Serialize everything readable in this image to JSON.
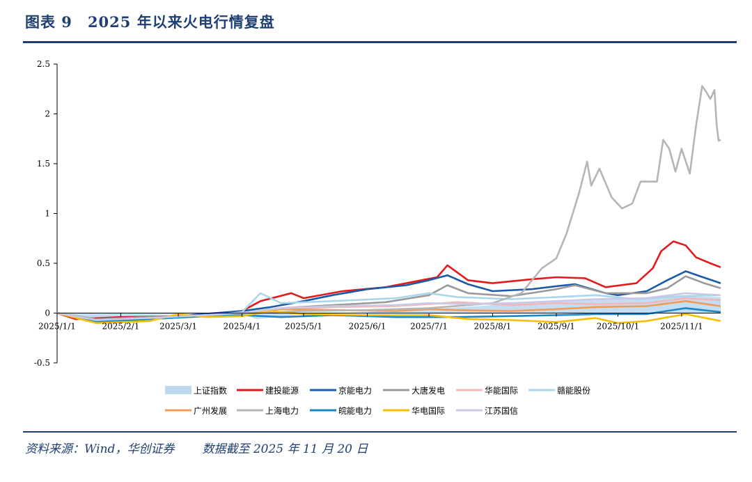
{
  "header": {
    "figure_no": "图表 9",
    "title": "2025 年以来火电行情复盘"
  },
  "footer": {
    "source": "资料来源：Wind，华创证券",
    "cutoff": "数据截至 2025 年 11 月 20 日"
  },
  "chart_data": {
    "type": "line",
    "ylim": [
      -0.5,
      2.5
    ],
    "yticks": [
      "2.5",
      "2",
      "1.5",
      "1",
      "0.5",
      "0",
      "-0.5"
    ],
    "ytick_values": [
      2.5,
      2,
      1.5,
      1,
      0.5,
      0,
      -0.5
    ],
    "x_range": [
      "2025-01-01",
      "2025-11-20"
    ],
    "xticks": [
      "2025/1/1",
      "2025/2/1",
      "2025/3/1",
      "2025/4/1",
      "2025/5/1",
      "2025/6/1",
      "2025/7/1",
      "2025/8/1",
      "2025/9/1",
      "2025/10/1",
      "2025/11/1"
    ],
    "xtick_dates": [
      "2025-01-01",
      "2025-02-01",
      "2025-03-01",
      "2025-04-01",
      "2025-05-01",
      "2025-06-01",
      "2025-07-01",
      "2025-08-01",
      "2025-09-01",
      "2025-10-01",
      "2025-11-01"
    ],
    "legend_position": "bottom",
    "series": [
      {
        "name": "上证指数",
        "color": "#bcd9f2",
        "style": "area",
        "points": [
          [
            "2025-01-01",
            0
          ],
          [
            "2025-01-15",
            -0.05
          ],
          [
            "2025-02-01",
            -0.03
          ],
          [
            "2025-03-01",
            -0.01
          ],
          [
            "2025-04-01",
            0.0
          ],
          [
            "2025-04-08",
            -0.06
          ],
          [
            "2025-05-01",
            -0.01
          ],
          [
            "2025-06-01",
            0.01
          ],
          [
            "2025-07-01",
            0.04
          ],
          [
            "2025-08-01",
            0.08
          ],
          [
            "2025-09-01",
            0.12
          ],
          [
            "2025-10-01",
            0.15
          ],
          [
            "2025-11-01",
            0.17
          ],
          [
            "2025-11-20",
            0.16
          ]
        ]
      },
      {
        "name": "建投能源",
        "color": "#e31a1c",
        "points": [
          [
            "2025-01-01",
            0
          ],
          [
            "2025-01-10",
            -0.06
          ],
          [
            "2025-02-01",
            -0.04
          ],
          [
            "2025-03-01",
            -0.03
          ],
          [
            "2025-04-01",
            0.02
          ],
          [
            "2025-04-10",
            0.12
          ],
          [
            "2025-04-25",
            0.2
          ],
          [
            "2025-05-01",
            0.15
          ],
          [
            "2025-05-20",
            0.22
          ],
          [
            "2025-06-10",
            0.26
          ],
          [
            "2025-06-25",
            0.32
          ],
          [
            "2025-07-05",
            0.36
          ],
          [
            "2025-07-10",
            0.48
          ],
          [
            "2025-07-20",
            0.33
          ],
          [
            "2025-08-01",
            0.3
          ],
          [
            "2025-08-20",
            0.34
          ],
          [
            "2025-09-01",
            0.36
          ],
          [
            "2025-09-15",
            0.35
          ],
          [
            "2025-09-25",
            0.26
          ],
          [
            "2025-10-10",
            0.3
          ],
          [
            "2025-10-18",
            0.45
          ],
          [
            "2025-10-22",
            0.62
          ],
          [
            "2025-10-28",
            0.72
          ],
          [
            "2025-11-03",
            0.68
          ],
          [
            "2025-11-08",
            0.56
          ],
          [
            "2025-11-15",
            0.5
          ],
          [
            "2025-11-20",
            0.46
          ]
        ]
      },
      {
        "name": "京能电力",
        "color": "#1a5aa8",
        "points": [
          [
            "2025-01-01",
            0
          ],
          [
            "2025-01-15",
            -0.07
          ],
          [
            "2025-02-01",
            -0.05
          ],
          [
            "2025-03-01",
            -0.03
          ],
          [
            "2025-04-01",
            0.02
          ],
          [
            "2025-04-15",
            0.06
          ],
          [
            "2025-05-01",
            0.12
          ],
          [
            "2025-05-15",
            0.18
          ],
          [
            "2025-06-01",
            0.24
          ],
          [
            "2025-06-20",
            0.28
          ],
          [
            "2025-07-01",
            0.33
          ],
          [
            "2025-07-10",
            0.38
          ],
          [
            "2025-07-20",
            0.29
          ],
          [
            "2025-08-01",
            0.22
          ],
          [
            "2025-08-20",
            0.24
          ],
          [
            "2025-09-01",
            0.27
          ],
          [
            "2025-09-10",
            0.29
          ],
          [
            "2025-09-25",
            0.2
          ],
          [
            "2025-10-01",
            0.18
          ],
          [
            "2025-10-15",
            0.22
          ],
          [
            "2025-10-25",
            0.33
          ],
          [
            "2025-11-03",
            0.42
          ],
          [
            "2025-11-10",
            0.37
          ],
          [
            "2025-11-20",
            0.3
          ]
        ]
      },
      {
        "name": "大唐发电",
        "color": "#9a9a9a",
        "points": [
          [
            "2025-01-01",
            0
          ],
          [
            "2025-01-20",
            -0.06
          ],
          [
            "2025-02-15",
            -0.04
          ],
          [
            "2025-03-15",
            -0.02
          ],
          [
            "2025-04-01",
            0.0
          ],
          [
            "2025-04-20",
            0.05
          ],
          [
            "2025-05-15",
            0.08
          ],
          [
            "2025-06-10",
            0.11
          ],
          [
            "2025-07-01",
            0.18
          ],
          [
            "2025-07-10",
            0.28
          ],
          [
            "2025-07-20",
            0.2
          ],
          [
            "2025-08-10",
            0.17
          ],
          [
            "2025-09-01",
            0.24
          ],
          [
            "2025-09-10",
            0.28
          ],
          [
            "2025-09-25",
            0.2
          ],
          [
            "2025-10-15",
            0.2
          ],
          [
            "2025-10-25",
            0.25
          ],
          [
            "2025-11-03",
            0.37
          ],
          [
            "2025-11-12",
            0.3
          ],
          [
            "2025-11-20",
            0.25
          ]
        ]
      },
      {
        "name": "华能国际",
        "color": "#f4b6b6",
        "points": [
          [
            "2025-01-01",
            0
          ],
          [
            "2025-01-20",
            -0.07
          ],
          [
            "2025-02-15",
            -0.05
          ],
          [
            "2025-03-15",
            -0.02
          ],
          [
            "2025-04-01",
            0.0
          ],
          [
            "2025-04-20",
            0.04
          ],
          [
            "2025-05-15",
            0.06
          ],
          [
            "2025-06-15",
            0.07
          ],
          [
            "2025-07-01",
            0.09
          ],
          [
            "2025-07-15",
            0.11
          ],
          [
            "2025-08-10",
            0.08
          ],
          [
            "2025-09-01",
            0.1
          ],
          [
            "2025-09-20",
            0.09
          ],
          [
            "2025-10-15",
            0.1
          ],
          [
            "2025-11-03",
            0.15
          ],
          [
            "2025-11-20",
            0.13
          ]
        ]
      },
      {
        "name": "赣能股份",
        "color": "#a9d6ea",
        "points": [
          [
            "2025-01-01",
            0
          ],
          [
            "2025-01-20",
            -0.07
          ],
          [
            "2025-02-15",
            -0.06
          ],
          [
            "2025-03-15",
            -0.03
          ],
          [
            "2025-04-01",
            0.01
          ],
          [
            "2025-04-10",
            0.2
          ],
          [
            "2025-04-20",
            0.1
          ],
          [
            "2025-05-15",
            0.12
          ],
          [
            "2025-06-15",
            0.15
          ],
          [
            "2025-07-01",
            0.2
          ],
          [
            "2025-07-15",
            0.16
          ],
          [
            "2025-08-10",
            0.14
          ],
          [
            "2025-09-01",
            0.16
          ],
          [
            "2025-09-20",
            0.18
          ],
          [
            "2025-10-10",
            0.14
          ],
          [
            "2025-11-01",
            0.17
          ],
          [
            "2025-11-20",
            0.18
          ]
        ]
      },
      {
        "name": "广州发展",
        "color": "#f39a55",
        "points": [
          [
            "2025-01-01",
            0
          ],
          [
            "2025-01-20",
            -0.08
          ],
          [
            "2025-02-15",
            -0.05
          ],
          [
            "2025-03-15",
            -0.03
          ],
          [
            "2025-04-01",
            0.0
          ],
          [
            "2025-04-20",
            0.04
          ],
          [
            "2025-05-15",
            0.03
          ],
          [
            "2025-06-15",
            0.02
          ],
          [
            "2025-07-01",
            0.04
          ],
          [
            "2025-07-15",
            0.03
          ],
          [
            "2025-08-10",
            0.02
          ],
          [
            "2025-09-01",
            0.04
          ],
          [
            "2025-09-20",
            0.06
          ],
          [
            "2025-10-15",
            0.07
          ],
          [
            "2025-11-03",
            0.12
          ],
          [
            "2025-11-20",
            0.07
          ]
        ]
      },
      {
        "name": "上海电力",
        "color": "#b5b5b5",
        "points": [
          [
            "2025-01-01",
            0
          ],
          [
            "2025-01-20",
            -0.08
          ],
          [
            "2025-02-15",
            -0.06
          ],
          [
            "2025-03-15",
            -0.03
          ],
          [
            "2025-04-01",
            0.0
          ],
          [
            "2025-05-01",
            0.02
          ],
          [
            "2025-06-01",
            0.03
          ],
          [
            "2025-07-01",
            0.05
          ],
          [
            "2025-08-01",
            0.1
          ],
          [
            "2025-08-15",
            0.2
          ],
          [
            "2025-08-25",
            0.45
          ],
          [
            "2025-09-01",
            0.55
          ],
          [
            "2025-09-06",
            0.8
          ],
          [
            "2025-09-12",
            1.2
          ],
          [
            "2025-09-16",
            1.52
          ],
          [
            "2025-09-18",
            1.28
          ],
          [
            "2025-09-22",
            1.45
          ],
          [
            "2025-09-28",
            1.16
          ],
          [
            "2025-10-03",
            1.05
          ],
          [
            "2025-10-08",
            1.1
          ],
          [
            "2025-10-12",
            1.32
          ],
          [
            "2025-10-20",
            1.32
          ],
          [
            "2025-10-23",
            1.74
          ],
          [
            "2025-10-26",
            1.65
          ],
          [
            "2025-10-29",
            1.42
          ],
          [
            "2025-11-01",
            1.65
          ],
          [
            "2025-11-05",
            1.4
          ],
          [
            "2025-11-08",
            1.88
          ],
          [
            "2025-11-11",
            2.28
          ],
          [
            "2025-11-13",
            2.22
          ],
          [
            "2025-11-15",
            2.15
          ],
          [
            "2025-11-17",
            2.24
          ],
          [
            "2025-11-18",
            1.9
          ],
          [
            "2025-11-19",
            1.73
          ],
          [
            "2025-11-20",
            1.74
          ]
        ]
      },
      {
        "name": "皖能电力",
        "color": "#1688c8",
        "points": [
          [
            "2025-01-01",
            0
          ],
          [
            "2025-01-20",
            -0.09
          ],
          [
            "2025-02-15",
            -0.06
          ],
          [
            "2025-03-15",
            -0.03
          ],
          [
            "2025-04-01",
            -0.02
          ],
          [
            "2025-04-20",
            -0.04
          ],
          [
            "2025-05-15",
            -0.02
          ],
          [
            "2025-06-15",
            -0.04
          ],
          [
            "2025-07-15",
            -0.04
          ],
          [
            "2025-08-10",
            -0.03
          ],
          [
            "2025-09-01",
            -0.02
          ],
          [
            "2025-09-20",
            -0.01
          ],
          [
            "2025-10-15",
            -0.01
          ],
          [
            "2025-11-03",
            0.05
          ],
          [
            "2025-11-20",
            0.01
          ]
        ]
      },
      {
        "name": "华电国际",
        "color": "#f6be00",
        "points": [
          [
            "2025-01-01",
            0
          ],
          [
            "2025-01-20",
            -0.1
          ],
          [
            "2025-02-15",
            -0.08
          ],
          [
            "2025-03-01",
            -0.01
          ],
          [
            "2025-03-15",
            -0.04
          ],
          [
            "2025-04-01",
            -0.03
          ],
          [
            "2025-04-15",
            0.02
          ],
          [
            "2025-05-01",
            -0.01
          ],
          [
            "2025-06-01",
            -0.02
          ],
          [
            "2025-07-01",
            -0.02
          ],
          [
            "2025-07-20",
            -0.06
          ],
          [
            "2025-08-10",
            -0.07
          ],
          [
            "2025-09-01",
            -0.09
          ],
          [
            "2025-09-20",
            -0.05
          ],
          [
            "2025-10-01",
            -0.1
          ],
          [
            "2025-10-15",
            -0.08
          ],
          [
            "2025-11-03",
            -0.01
          ],
          [
            "2025-11-20",
            -0.08
          ]
        ]
      },
      {
        "name": "江苏国信",
        "color": "#c9c9e6",
        "points": [
          [
            "2025-01-01",
            0
          ],
          [
            "2025-01-20",
            -0.07
          ],
          [
            "2025-02-15",
            -0.05
          ],
          [
            "2025-03-15",
            -0.02
          ],
          [
            "2025-04-01",
            0.0
          ],
          [
            "2025-04-20",
            0.05
          ],
          [
            "2025-05-15",
            0.07
          ],
          [
            "2025-06-15",
            0.08
          ],
          [
            "2025-07-01",
            0.1
          ],
          [
            "2025-07-20",
            0.09
          ],
          [
            "2025-08-10",
            0.1
          ],
          [
            "2025-09-01",
            0.12
          ],
          [
            "2025-09-20",
            0.14
          ],
          [
            "2025-10-15",
            0.15
          ],
          [
            "2025-11-03",
            0.2
          ],
          [
            "2025-11-20",
            0.18
          ]
        ]
      }
    ]
  }
}
